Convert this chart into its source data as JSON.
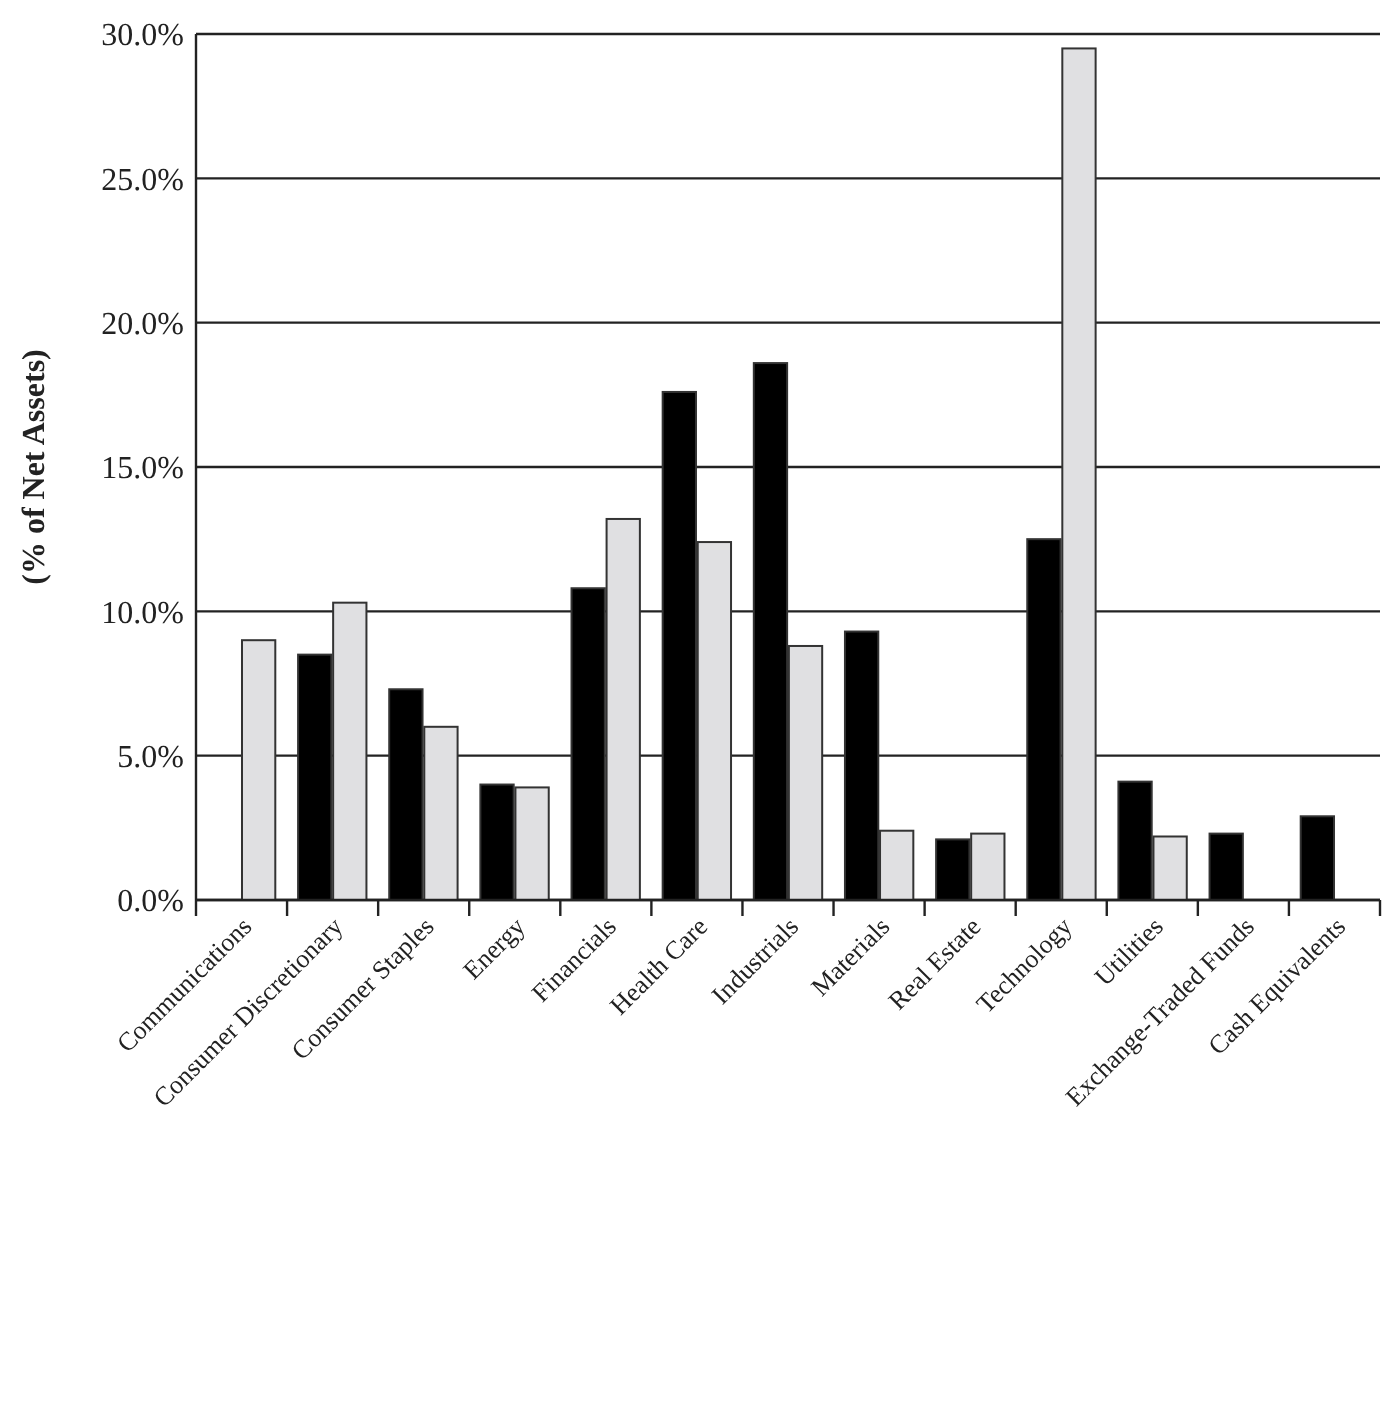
{
  "chart_data": {
    "type": "bar",
    "ylabel": "(% of Net Assets)",
    "categories": [
      "Communications",
      "Consumer Discretionary",
      "Consumer Staples",
      "Energy",
      "Financials",
      "Health Care",
      "Industrials",
      "Materials",
      "Real Estate",
      "Technology",
      "Utilities",
      "Exchange-Traded Funds",
      "Cash Equivalents"
    ],
    "series": [
      {
        "color": "#000000",
        "values": [
          null,
          8.5,
          7.3,
          4.0,
          10.8,
          17.6,
          18.6,
          9.3,
          2.1,
          12.5,
          4.1,
          2.3,
          2.9
        ]
      },
      {
        "color": "#e0e0e2",
        "values": [
          9.0,
          10.3,
          6.0,
          3.9,
          13.2,
          12.4,
          8.8,
          2.4,
          2.3,
          29.5,
          2.2,
          null,
          null
        ]
      }
    ],
    "ylim": [
      0,
      30
    ],
    "yticks": [
      {
        "value": 0,
        "label": "0.0%"
      },
      {
        "value": 5,
        "label": "5.0%"
      },
      {
        "value": 10,
        "label": "10.0%"
      },
      {
        "value": 15,
        "label": "15.0%"
      },
      {
        "value": 20,
        "label": "20.0%"
      },
      {
        "value": 25,
        "label": "25.0%"
      },
      {
        "value": 30,
        "label": "30.0%"
      }
    ],
    "grid": "y"
  }
}
